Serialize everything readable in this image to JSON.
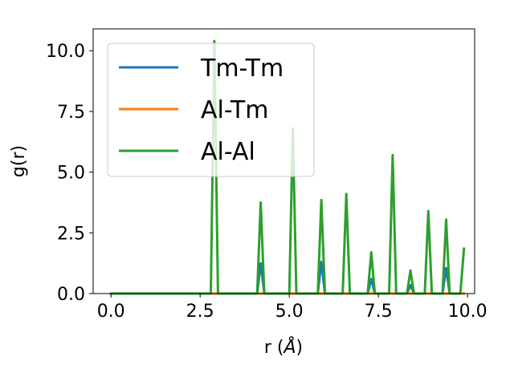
{
  "chart_data": {
    "type": "line",
    "title": "",
    "xlabel": "r (",
    "xlabel_symbol": "Å",
    "xlabel_close": ")",
    "ylabel": "g(r)",
    "xlim": [
      -0.5,
      10.2
    ],
    "ylim": [
      0,
      10.9
    ],
    "grid": false,
    "legend_position": "top-left",
    "xticks": [
      0.0,
      2.5,
      5.0,
      7.5,
      10.0
    ],
    "xtick_labels": [
      "0.0",
      "2.5",
      "5.0",
      "7.5",
      "10.0"
    ],
    "yticks": [
      0.0,
      2.5,
      5.0,
      7.5,
      10.0
    ],
    "ytick_labels": [
      "0.0",
      "2.5",
      "5.0",
      "7.5",
      "10.0"
    ],
    "series": [
      {
        "name": "Tm-Tm",
        "color": "#1f77b4",
        "x": [
          0,
          4.1,
          4.2,
          4.3,
          5.8,
          5.9,
          6.0,
          7.2,
          7.3,
          7.4,
          8.3,
          8.4,
          8.5,
          9.3,
          9.4,
          9.5,
          9.9
        ],
        "y": [
          0,
          0,
          1.25,
          0,
          0,
          1.3,
          0,
          0,
          0.6,
          0,
          0,
          0.35,
          0,
          0,
          1.05,
          0,
          0
        ]
      },
      {
        "name": "Al-Tm",
        "color": "#ff7f0e",
        "x": [
          0,
          9.9
        ],
        "y": [
          0,
          0
        ]
      },
      {
        "name": "Al-Al",
        "color": "#2ca02c",
        "x": [
          0,
          2.8,
          2.9,
          3.0,
          4.1,
          4.2,
          4.3,
          5.0,
          5.1,
          5.2,
          5.8,
          5.9,
          6.0,
          6.5,
          6.6,
          6.7,
          7.2,
          7.3,
          7.4,
          7.8,
          7.9,
          8.0,
          8.3,
          8.4,
          8.5,
          8.8,
          8.9,
          9.0,
          9.3,
          9.4,
          9.5,
          9.8,
          9.9
        ],
        "y": [
          0,
          0,
          10.4,
          0,
          0,
          3.75,
          0,
          0,
          6.8,
          0,
          0,
          3.85,
          0,
          0,
          4.1,
          0,
          0,
          1.7,
          0,
          0,
          5.7,
          0,
          0,
          0.95,
          0,
          0,
          3.4,
          0,
          0,
          3.05,
          0,
          0,
          1.85
        ]
      }
    ]
  }
}
